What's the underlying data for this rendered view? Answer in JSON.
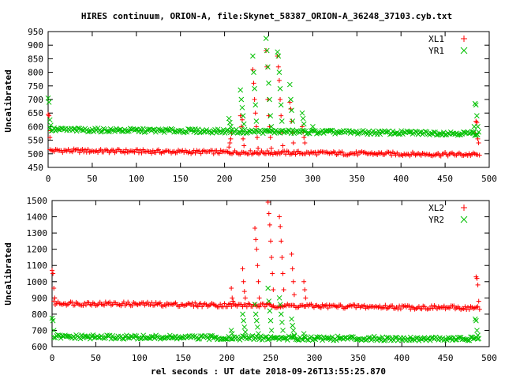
{
  "chart_data": {
    "title": "HIRES continuum, ORION-A, file:Skynet_58387_ORION-A_36248_37103.cyb.txt",
    "xlabel": "rel seconds : UT date 2018-09-26T13:55:25.870",
    "colors": {
      "red": "#ff0000",
      "green": "#00c000"
    },
    "panels": [
      {
        "type": "scatter",
        "ylabel": "Uncalibrated",
        "xlim": [
          0,
          500
        ],
        "ylim": [
          450,
          950
        ],
        "xticks": [
          0,
          50,
          100,
          150,
          200,
          250,
          300,
          350,
          400,
          450,
          500
        ],
        "yticks": [
          450,
          500,
          550,
          600,
          650,
          700,
          750,
          800,
          850,
          900,
          950
        ],
        "legend_position": "top-right",
        "series": [
          {
            "name": "XL1",
            "marker": "plus",
            "color": "#ff0000",
            "baseline": {
              "x_start": 2,
              "x_end": 488,
              "y_start": 512,
              "y_end": 497
            },
            "points": [
              [
                0,
                645
              ],
              [
                1,
                640
              ],
              [
                2,
                560
              ],
              [
                3,
                585
              ],
              [
                205,
                525
              ],
              [
                206,
                540
              ],
              [
                207,
                555
              ],
              [
                208,
                575
              ],
              [
                218,
                640
              ],
              [
                219,
                600
              ],
              [
                220,
                625
              ],
              [
                221,
                555
              ],
              [
                222,
                530
              ],
              [
                232,
                810
              ],
              [
                233,
                760
              ],
              [
                234,
                700
              ],
              [
                235,
                650
              ],
              [
                236,
                600
              ],
              [
                237,
                560
              ],
              [
                238,
                520
              ],
              [
                247,
                880
              ],
              [
                248,
                820
              ],
              [
                249,
                700
              ],
              [
                250,
                640
              ],
              [
                251,
                600
              ],
              [
                252,
                560
              ],
              [
                253,
                520
              ],
              [
                260,
                860
              ],
              [
                261,
                820
              ],
              [
                262,
                770
              ],
              [
                263,
                700
              ],
              [
                264,
                640
              ],
              [
                265,
                580
              ],
              [
                266,
                530
              ],
              [
                274,
                690
              ],
              [
                275,
                665
              ],
              [
                276,
                620
              ],
              [
                277,
                580
              ],
              [
                278,
                540
              ],
              [
                288,
                600
              ],
              [
                289,
                580
              ],
              [
                290,
                560
              ],
              [
                291,
                540
              ],
              [
                484,
                575
              ],
              [
                485,
                620
              ],
              [
                486,
                615
              ],
              [
                487,
                555
              ],
              [
                488,
                540
              ],
              [
                489,
                495
              ]
            ]
          },
          {
            "name": "YR1",
            "marker": "cross",
            "color": "#00c000",
            "baseline": {
              "x_start": 2,
              "x_end": 488,
              "y_start": 589,
              "y_end": 575
            },
            "points": [
              [
                0,
                705
              ],
              [
                1,
                690
              ],
              [
                2,
                625
              ],
              [
                3,
                605
              ],
              [
                205,
                630
              ],
              [
                206,
                615
              ],
              [
                207,
                600
              ],
              [
                218,
                735
              ],
              [
                219,
                700
              ],
              [
                220,
                670
              ],
              [
                221,
                640
              ],
              [
                222,
                610
              ],
              [
                232,
                860
              ],
              [
                233,
                800
              ],
              [
                234,
                740
              ],
              [
                235,
                680
              ],
              [
                236,
                620
              ],
              [
                247,
                925
              ],
              [
                248,
                880
              ],
              [
                249,
                820
              ],
              [
                250,
                760
              ],
              [
                251,
                700
              ],
              [
                252,
                640
              ],
              [
                253,
                600
              ],
              [
                260,
                875
              ],
              [
                261,
                860
              ],
              [
                262,
                800
              ],
              [
                263,
                740
              ],
              [
                264,
                680
              ],
              [
                265,
                620
              ],
              [
                274,
                755
              ],
              [
                275,
                700
              ],
              [
                276,
                660
              ],
              [
                277,
                620
              ],
              [
                288,
                650
              ],
              [
                289,
                630
              ],
              [
                290,
                610
              ],
              [
                300,
                600
              ],
              [
                482,
                580
              ],
              [
                483,
                600
              ],
              [
                484,
                685
              ],
              [
                485,
                680
              ],
              [
                486,
                640
              ],
              [
                487,
                600
              ],
              [
                488,
                580
              ]
            ]
          }
        ]
      },
      {
        "type": "scatter",
        "ylabel": "Uncalibrated",
        "xlim": [
          0,
          500
        ],
        "ylim": [
          600,
          1500
        ],
        "xticks": [
          0,
          50,
          100,
          150,
          200,
          250,
          300,
          350,
          400,
          450,
          500
        ],
        "yticks": [
          600,
          700,
          800,
          900,
          1000,
          1100,
          1200,
          1300,
          1400,
          1500
        ],
        "legend_position": "top-right",
        "series": [
          {
            "name": "XL2",
            "marker": "plus",
            "color": "#ff0000",
            "baseline": {
              "x_start": 2,
              "x_end": 488,
              "y_start": 868,
              "y_end": 838
            },
            "points": [
              [
                0,
                1070
              ],
              [
                1,
                1050
              ],
              [
                2,
                960
              ],
              [
                3,
                900
              ],
              [
                205,
                960
              ],
              [
                206,
                900
              ],
              [
                207,
                880
              ],
              [
                218,
                1080
              ],
              [
                219,
                1000
              ],
              [
                220,
                940
              ],
              [
                221,
                900
              ],
              [
                232,
                1330
              ],
              [
                233,
                1260
              ],
              [
                234,
                1200
              ],
              [
                235,
                1100
              ],
              [
                236,
                1000
              ],
              [
                237,
                900
              ],
              [
                247,
                1490
              ],
              [
                248,
                1420
              ],
              [
                249,
                1350
              ],
              [
                250,
                1250
              ],
              [
                251,
                1150
              ],
              [
                252,
                1050
              ],
              [
                253,
                950
              ],
              [
                260,
                1400
              ],
              [
                261,
                1340
              ],
              [
                262,
                1250
              ],
              [
                263,
                1150
              ],
              [
                264,
                1050
              ],
              [
                265,
                950
              ],
              [
                274,
                1170
              ],
              [
                275,
                1080
              ],
              [
                276,
                1000
              ],
              [
                277,
                920
              ],
              [
                288,
                1000
              ],
              [
                289,
                950
              ],
              [
                290,
                900
              ],
              [
                485,
                1030
              ],
              [
                486,
                1020
              ],
              [
                487,
                980
              ],
              [
                488,
                880
              ],
              [
                489,
                830
              ]
            ]
          },
          {
            "name": "YR2",
            "marker": "cross",
            "color": "#00c000",
            "baseline": {
              "x_start": 2,
              "x_end": 488,
              "y_start": 660,
              "y_end": 647
            },
            "points": [
              [
                0,
                775
              ],
              [
                1,
                760
              ],
              [
                2,
                700
              ],
              [
                205,
                700
              ],
              [
                206,
                680
              ],
              [
                218,
                800
              ],
              [
                219,
                760
              ],
              [
                220,
                720
              ],
              [
                221,
                690
              ],
              [
                232,
                860
              ],
              [
                233,
                800
              ],
              [
                234,
                760
              ],
              [
                235,
                720
              ],
              [
                236,
                680
              ],
              [
                247,
                960
              ],
              [
                248,
                880
              ],
              [
                249,
                820
              ],
              [
                250,
                760
              ],
              [
                251,
                700
              ],
              [
                260,
                900
              ],
              [
                261,
                860
              ],
              [
                262,
                800
              ],
              [
                263,
                750
              ],
              [
                264,
                700
              ],
              [
                274,
                770
              ],
              [
                275,
                730
              ],
              [
                276,
                700
              ],
              [
                277,
                670
              ],
              [
                288,
                680
              ],
              [
                289,
                660
              ],
              [
                484,
                770
              ],
              [
                485,
                760
              ],
              [
                486,
                700
              ],
              [
                487,
                670
              ],
              [
                488,
                650
              ]
            ]
          }
        ]
      }
    ]
  }
}
